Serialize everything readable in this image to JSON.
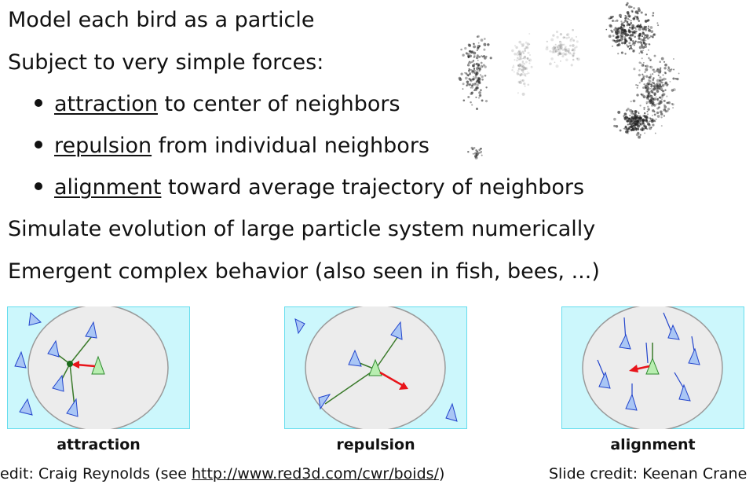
{
  "lines": {
    "l1": "Model each bird as a particle",
    "l2": "Subject to very simple forces:",
    "l6": "Simulate evolution of large particle system numerically",
    "l7": "Emergent complex behavior (also seen in fish, bees, ...)"
  },
  "bullets": [
    {
      "term": "attraction",
      "rest": " to center of neighbors"
    },
    {
      "term": "repulsion",
      "rest": " from individual neighbors"
    },
    {
      "term": "alignment",
      "rest": " toward average trajectory of neighbors"
    }
  ],
  "diagrams": [
    {
      "caption": "attraction"
    },
    {
      "caption": "repulsion"
    },
    {
      "caption": "alignment"
    }
  ],
  "credits": {
    "left_prefix": "edit: Craig Reynolds (see ",
    "left_link": "http://www.red3d.com/cwr/boids/",
    "left_suffix": ")",
    "right": "Slide credit: Keenan Crane"
  },
  "colors": {
    "panel_bg": "#ccf7fc",
    "panel_border": "#66ddee",
    "neighborhood_fill": "#ececec",
    "boid_fill": "#a9c6f5",
    "boid_stroke": "#2244cc",
    "self_fill": "#b8eeb0",
    "self_stroke": "#2e8a2e",
    "force_arrow": "#e8141a",
    "link_line": "#3a7a2a"
  }
}
